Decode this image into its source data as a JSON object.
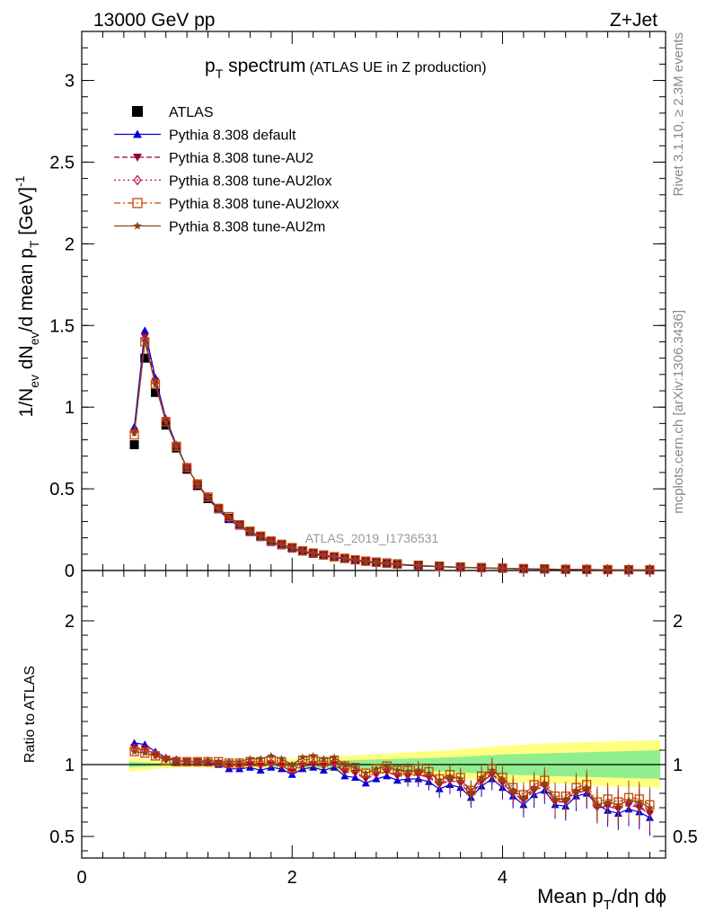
{
  "header": {
    "left": "13000 GeV pp",
    "right": "Z+Jet"
  },
  "title": {
    "main": "p",
    "main_sub": "T",
    "main_rest": " spectrum",
    "paren": "(ATLAS UE in Z production)"
  },
  "side_text": {
    "rivet": "Rivet 3.1.10, ≥ 2.3M events",
    "mcplots": "mcplots.cern.ch [arXiv:1306.3436]"
  },
  "watermark": "ATLAS_2019_I1736531",
  "axes": {
    "ylabel_top": "1/N_ev dN_ev/d mean p_T [GeV]^-1",
    "ylabel_bottom": "Ratio to ATLAS",
    "xlabel": "Mean p_T/dη dϕ"
  },
  "legend": [
    {
      "label": "ATLAS",
      "color": "#000000",
      "marker": "square-filled",
      "line": "none"
    },
    {
      "label": "Pythia 8.308 default",
      "color": "#0000dd",
      "marker": "triangle-up-filled",
      "line": "solid"
    },
    {
      "label": "Pythia 8.308 tune-AU2",
      "color": "#990033",
      "marker": "triangle-down-filled",
      "line": "dashed"
    },
    {
      "label": "Pythia 8.308 tune-AU2lox",
      "color": "#bb1144",
      "marker": "diamond-open",
      "line": "dotted"
    },
    {
      "label": "Pythia 8.308 tune-AU2loxx",
      "color": "#cc4400",
      "marker": "square-open",
      "line": "dashdot"
    },
    {
      "label": "Pythia 8.308 tune-AU2m",
      "color": "#8b4513",
      "marker": "star-filled",
      "line": "solid"
    }
  ],
  "chart_data": [
    {
      "type": "scatter",
      "panel": "main",
      "xlim": [
        0,
        5.55
      ],
      "ylim": [
        0,
        3.3
      ],
      "yticks": [
        0,
        0.5,
        1,
        1.5,
        2,
        2.5,
        3
      ],
      "ytick_labels": [
        "0",
        "0.5",
        "1",
        "1.5",
        "2",
        "2.5",
        "3"
      ],
      "xticks": [
        0,
        2,
        4
      ],
      "xtick_labels": [
        "0",
        "2",
        "4"
      ],
      "x": [
        0.5,
        0.6,
        0.7,
        0.8,
        0.9,
        1.0,
        1.1,
        1.2,
        1.3,
        1.4,
        1.5,
        1.6,
        1.7,
        1.8,
        1.9,
        2.0,
        2.1,
        2.2,
        2.3,
        2.4,
        2.5,
        2.6,
        2.7,
        2.8,
        2.9,
        3.0,
        3.2,
        3.4,
        3.6,
        3.8,
        4.0,
        4.2,
        4.4,
        4.6,
        4.8,
        5.0,
        5.2,
        5.4
      ],
      "series": [
        {
          "name": "ATLAS",
          "values": [
            0.77,
            1.3,
            1.09,
            0.89,
            0.75,
            0.62,
            0.52,
            0.44,
            0.38,
            0.32,
            0.28,
            0.24,
            0.21,
            0.18,
            0.16,
            0.14,
            0.12,
            0.105,
            0.095,
            0.085,
            0.075,
            0.066,
            0.058,
            0.052,
            0.046,
            0.041,
            0.033,
            0.027,
            0.022,
            0.018,
            0.015,
            0.012,
            0.01,
            0.008,
            0.007,
            0.006,
            0.005,
            0.004
          ]
        },
        {
          "name": "Pythia 8.308 default",
          "values": [
            0.88,
            1.47,
            1.18,
            0.93,
            0.77,
            0.63,
            0.53,
            0.44,
            0.37,
            0.31,
            0.27,
            0.23,
            0.2,
            0.17,
            0.15,
            0.13,
            0.115,
            0.1,
            0.09,
            0.08,
            0.07,
            0.06,
            0.052,
            0.046,
            0.041,
            0.036,
            0.028,
            0.023,
            0.018,
            0.015,
            0.012,
            0.009,
            0.007,
            0.006,
            0.005,
            0.004,
            0.0035,
            0.003
          ]
        },
        {
          "name": "Pythia 8.308 tune-AU2",
          "values": [
            0.85,
            1.43,
            1.16,
            0.92,
            0.76,
            0.63,
            0.53,
            0.44,
            0.38,
            0.32,
            0.28,
            0.24,
            0.21,
            0.18,
            0.16,
            0.14,
            0.12,
            0.105,
            0.093,
            0.083,
            0.073,
            0.063,
            0.055,
            0.048,
            0.043,
            0.038,
            0.03,
            0.024,
            0.019,
            0.016,
            0.013,
            0.01,
            0.008,
            0.0065,
            0.0055,
            0.0045,
            0.0037,
            0.003
          ]
        },
        {
          "name": "Pythia 8.308 tune-AU2lox",
          "values": [
            0.85,
            1.42,
            1.15,
            0.92,
            0.76,
            0.63,
            0.53,
            0.45,
            0.38,
            0.32,
            0.28,
            0.24,
            0.21,
            0.18,
            0.16,
            0.14,
            0.12,
            0.106,
            0.094,
            0.083,
            0.073,
            0.064,
            0.056,
            0.049,
            0.043,
            0.038,
            0.03,
            0.024,
            0.02,
            0.016,
            0.013,
            0.01,
            0.008,
            0.0066,
            0.0056,
            0.0046,
            0.0038,
            0.003
          ]
        },
        {
          "name": "Pythia 8.308 tune-AU2loxx",
          "values": [
            0.83,
            1.4,
            1.14,
            0.91,
            0.76,
            0.63,
            0.53,
            0.45,
            0.38,
            0.33,
            0.28,
            0.24,
            0.21,
            0.18,
            0.16,
            0.14,
            0.12,
            0.107,
            0.095,
            0.084,
            0.074,
            0.065,
            0.057,
            0.05,
            0.044,
            0.039,
            0.031,
            0.025,
            0.02,
            0.017,
            0.014,
            0.011,
            0.009,
            0.007,
            0.006,
            0.005,
            0.004,
            0.0032
          ]
        },
        {
          "name": "Pythia 8.308 tune-AU2m",
          "values": [
            0.84,
            1.4,
            1.14,
            0.91,
            0.76,
            0.63,
            0.53,
            0.45,
            0.38,
            0.33,
            0.28,
            0.24,
            0.21,
            0.18,
            0.16,
            0.14,
            0.12,
            0.107,
            0.095,
            0.084,
            0.074,
            0.065,
            0.057,
            0.05,
            0.044,
            0.039,
            0.031,
            0.025,
            0.02,
            0.017,
            0.014,
            0.011,
            0.009,
            0.007,
            0.006,
            0.005,
            0.004,
            0.0032
          ]
        }
      ]
    },
    {
      "type": "scatter",
      "panel": "ratio",
      "xlim": [
        0,
        5.55
      ],
      "ylim": [
        0.35,
        2.35
      ],
      "yticks": [
        0.5,
        1,
        2
      ],
      "ytick_labels": [
        "0.5",
        "1",
        "2"
      ],
      "xticks": [
        0,
        2,
        4
      ],
      "xtick_labels": [
        "0",
        "2",
        "4"
      ],
      "x": [
        0.5,
        0.6,
        0.7,
        0.8,
        0.9,
        1.0,
        1.1,
        1.2,
        1.3,
        1.4,
        1.5,
        1.6,
        1.7,
        1.8,
        1.9,
        2.0,
        2.1,
        2.2,
        2.3,
        2.4,
        2.5,
        2.6,
        2.7,
        2.8,
        2.9,
        3.0,
        3.1,
        3.2,
        3.3,
        3.4,
        3.5,
        3.6,
        3.7,
        3.8,
        3.9,
        4.0,
        4.1,
        4.2,
        4.3,
        4.4,
        4.5,
        4.6,
        4.7,
        4.8,
        4.9,
        5.0,
        5.1,
        5.2,
        5.3,
        5.4
      ],
      "band_stat_sys": {
        "x": [
          0.45,
          0.7,
          1.0,
          1.5,
          2.0,
          2.5,
          3.0,
          3.5,
          4.0,
          4.5,
          5.0,
          5.5
        ],
        "low": [
          0.95,
          0.97,
          0.98,
          0.97,
          0.96,
          0.95,
          0.93,
          0.91,
          0.88,
          0.87,
          0.85,
          0.84
        ],
        "high": [
          1.05,
          1.03,
          1.02,
          1.03,
          1.04,
          1.06,
          1.08,
          1.1,
          1.13,
          1.15,
          1.16,
          1.17
        ]
      },
      "band_stat": {
        "x": [
          0.45,
          0.7,
          1.0,
          1.5,
          2.0,
          2.5,
          3.0,
          3.5,
          4.0,
          4.5,
          5.0,
          5.5
        ],
        "low": [
          0.98,
          0.99,
          0.99,
          0.99,
          0.98,
          0.97,
          0.96,
          0.95,
          0.93,
          0.92,
          0.91,
          0.9
        ],
        "high": [
          1.02,
          1.01,
          1.01,
          1.01,
          1.02,
          1.03,
          1.04,
          1.05,
          1.07,
          1.08,
          1.09,
          1.1
        ]
      },
      "series": [
        {
          "name": "Pythia 8.308 default",
          "values": [
            1.15,
            1.14,
            1.09,
            1.05,
            1.03,
            1.02,
            1.02,
            1.01,
            1.0,
            0.97,
            0.97,
            0.98,
            0.96,
            0.98,
            0.97,
            0.93,
            0.97,
            0.98,
            0.96,
            0.98,
            0.92,
            0.91,
            0.87,
            0.9,
            0.92,
            0.89,
            0.9,
            0.9,
            0.88,
            0.83,
            0.86,
            0.84,
            0.77,
            0.85,
            0.9,
            0.84,
            0.78,
            0.72,
            0.79,
            0.82,
            0.72,
            0.71,
            0.78,
            0.8,
            0.72,
            0.68,
            0.66,
            0.69,
            0.67,
            0.63
          ]
        },
        {
          "name": "Pythia 8.308 tune-AU2",
          "values": [
            1.12,
            1.11,
            1.07,
            1.04,
            1.03,
            1.02,
            1.02,
            1.01,
            1.01,
            0.99,
            0.99,
            1.0,
            0.99,
            1.0,
            0.99,
            0.95,
            0.99,
            1.0,
            0.99,
            1.0,
            0.95,
            0.94,
            0.9,
            0.93,
            0.95,
            0.92,
            0.92,
            0.93,
            0.91,
            0.86,
            0.89,
            0.87,
            0.79,
            0.88,
            0.93,
            0.87,
            0.8,
            0.75,
            0.82,
            0.85,
            0.74,
            0.74,
            0.8,
            0.82,
            0.7,
            0.71,
            0.69,
            0.72,
            0.7,
            0.66
          ]
        },
        {
          "name": "Pythia 8.308 tune-AU2lox",
          "values": [
            1.11,
            1.1,
            1.07,
            1.04,
            1.03,
            1.02,
            1.02,
            1.02,
            1.01,
            1.0,
            1.0,
            1.01,
            1.0,
            1.01,
            1.0,
            0.96,
            1.0,
            1.01,
            1.0,
            1.01,
            0.96,
            0.95,
            0.91,
            0.94,
            0.96,
            0.93,
            0.93,
            0.94,
            0.92,
            0.87,
            0.9,
            0.88,
            0.8,
            0.89,
            0.94,
            0.88,
            0.81,
            0.76,
            0.83,
            0.86,
            0.75,
            0.75,
            0.81,
            0.83,
            0.71,
            0.72,
            0.7,
            0.73,
            0.71,
            0.67
          ]
        },
        {
          "name": "Pythia 8.308 tune-AU2loxx",
          "values": [
            1.09,
            1.08,
            1.06,
            1.03,
            1.02,
            1.02,
            1.02,
            1.02,
            1.02,
            1.01,
            1.01,
            1.02,
            1.02,
            1.03,
            1.02,
            0.98,
            1.03,
            1.04,
            1.02,
            1.03,
            0.99,
            0.98,
            0.94,
            0.97,
            0.99,
            0.96,
            0.96,
            0.97,
            0.95,
            0.9,
            0.93,
            0.91,
            0.82,
            0.92,
            0.97,
            0.91,
            0.84,
            0.79,
            0.86,
            0.89,
            0.78,
            0.78,
            0.84,
            0.86,
            0.74,
            0.76,
            0.74,
            0.77,
            0.76,
            0.72
          ]
        },
        {
          "name": "Pythia 8.308 tune-AU2m",
          "values": [
            1.09,
            1.08,
            1.06,
            1.04,
            1.03,
            1.02,
            1.02,
            1.03,
            1.02,
            1.02,
            1.02,
            1.04,
            1.04,
            1.06,
            1.04,
            1.0,
            1.05,
            1.06,
            1.04,
            1.05,
            1.0,
            0.98,
            0.94,
            0.97,
            0.99,
            0.96,
            0.95,
            0.96,
            0.94,
            0.89,
            0.92,
            0.9,
            0.81,
            0.91,
            0.96,
            0.9,
            0.82,
            0.77,
            0.84,
            0.87,
            0.76,
            0.76,
            0.82,
            0.84,
            0.72,
            0.74,
            0.72,
            0.75,
            0.74,
            0.7
          ]
        }
      ]
    }
  ]
}
